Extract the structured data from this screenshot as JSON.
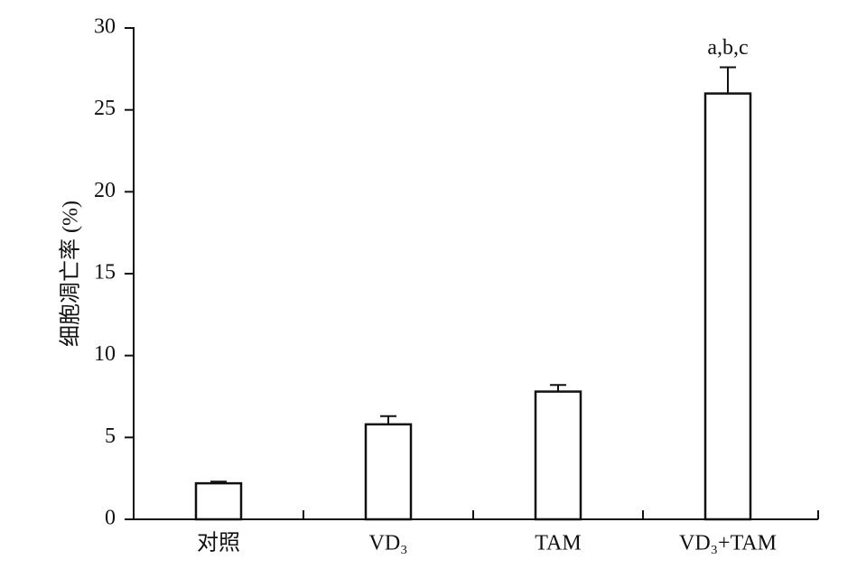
{
  "chart_data": {
    "type": "bar",
    "y_label": "细胞凋亡率 (%)",
    "categories": [
      "对照",
      "VD₃",
      "TAM",
      "VD₃+TAM"
    ],
    "values": [
      2.2,
      5.8,
      7.8,
      26.0
    ],
    "errors": [
      0.1,
      0.5,
      0.4,
      1.6
    ],
    "color": "#ffffff",
    "ylim": [
      0,
      30
    ],
    "yticks": [
      0,
      5,
      10,
      15,
      20,
      25,
      30
    ],
    "annotations": [
      {
        "text": "a,b,c",
        "category": "VD₃+TAM"
      }
    ]
  }
}
